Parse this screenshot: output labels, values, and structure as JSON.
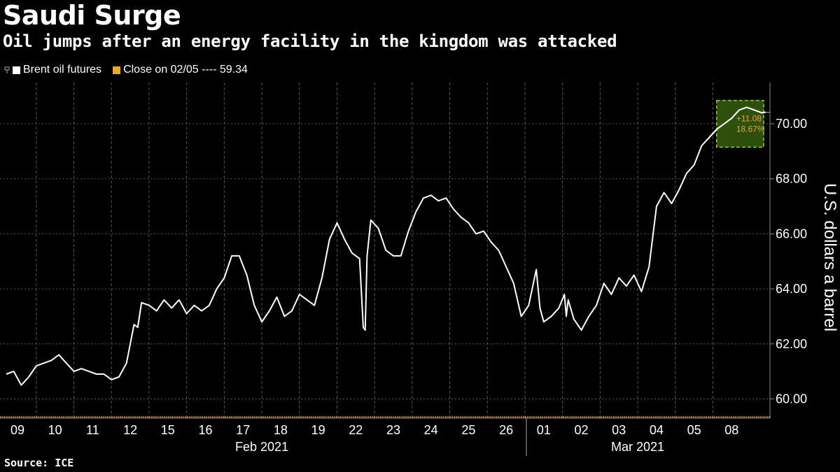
{
  "header": {
    "title": "Saudi Surge",
    "subtitle": "Oil jumps after an energy facility in the kingdom was attacked"
  },
  "legend": {
    "series_label": "Brent oil futures",
    "close_label": "Close on 02/05 ---- 59.34"
  },
  "source": "Source: ICE",
  "colors": {
    "background": "#000000",
    "line": "#ffffff",
    "close_line": "#f5a623",
    "highlight": "#3d6b12",
    "highlight_border": "#9acd32",
    "annotation": "#f0a030"
  },
  "chart_data": {
    "type": "line",
    "title": "Saudi Surge",
    "subtitle": "Oil jumps after an energy facility in the kingdom was attacked",
    "ylabel": "U.S. dollars a barrel",
    "ylim": [
      59.3,
      71.5
    ],
    "yticks": [
      "60.00",
      "62.00",
      "64.00",
      "66.00",
      "68.00",
      "70.00"
    ],
    "ytick_values": [
      60,
      62,
      64,
      66,
      68,
      70
    ],
    "xticks": [
      "09",
      "10",
      "11",
      "12",
      "15",
      "16",
      "17",
      "18",
      "19",
      "22",
      "23",
      "24",
      "25",
      "26",
      "01",
      "02",
      "03",
      "04",
      "05",
      "08"
    ],
    "months": [
      {
        "label": "Feb 2021",
        "from": 0,
        "to": 13
      },
      {
        "label": "Mar 2021",
        "from": 14,
        "to": 19
      }
    ],
    "reference_line": {
      "label": "Close on 02/05",
      "value": 59.34
    },
    "last_value": 70.42,
    "annotation": {
      "change": "+11.08",
      "pct": "18.67%"
    },
    "series": [
      {
        "name": "Brent oil futures",
        "x": [
          -0.3,
          -0.1,
          0.1,
          0.3,
          0.5,
          0.7,
          0.9,
          1.1,
          1.3,
          1.5,
          1.7,
          1.9,
          2.1,
          2.3,
          2.5,
          2.7,
          2.9,
          3.0,
          3.1,
          3.2,
          3.3,
          3.5,
          3.7,
          3.9,
          4.1,
          4.3,
          4.5,
          4.7,
          4.9,
          5.1,
          5.3,
          5.5,
          5.7,
          5.9,
          6.1,
          6.3,
          6.5,
          6.7,
          6.9,
          7.1,
          7.3,
          7.5,
          7.7,
          7.9,
          8.1,
          8.3,
          8.5,
          8.7,
          8.9,
          9.1,
          9.2,
          9.25,
          9.3,
          9.4,
          9.6,
          9.8,
          10.0,
          10.2,
          10.4,
          10.6,
          10.8,
          11.0,
          11.2,
          11.4,
          11.6,
          11.8,
          12.0,
          12.2,
          12.4,
          12.6,
          12.8,
          13.0,
          13.2,
          13.4,
          13.6,
          13.8,
          13.9,
          14.0,
          14.2,
          14.4,
          14.55,
          14.6,
          14.65,
          14.8,
          15.0,
          15.2,
          15.4,
          15.6,
          15.8,
          16.0,
          16.2,
          16.4,
          16.6,
          16.8,
          17.0,
          17.2,
          17.4,
          17.6,
          17.8,
          18.0,
          18.2,
          18.4,
          18.6,
          18.8,
          19.0,
          19.2,
          19.4,
          19.6,
          19.8,
          19.9
        ],
        "values": [
          60.9,
          61.0,
          60.5,
          60.8,
          61.2,
          61.3,
          61.4,
          61.6,
          61.3,
          61.0,
          61.1,
          61.0,
          60.9,
          60.9,
          60.7,
          60.8,
          61.3,
          62.0,
          62.7,
          62.6,
          63.5,
          63.4,
          63.2,
          63.6,
          63.3,
          63.6,
          63.1,
          63.4,
          63.2,
          63.4,
          64.0,
          64.4,
          65.2,
          65.2,
          64.5,
          63.4,
          62.8,
          63.2,
          63.7,
          63.0,
          63.2,
          63.8,
          63.6,
          63.4,
          64.4,
          65.8,
          66.4,
          65.8,
          65.3,
          65.1,
          62.6,
          62.5,
          65.2,
          66.5,
          66.2,
          65.4,
          65.2,
          65.2,
          66.1,
          66.8,
          67.3,
          67.4,
          67.2,
          67.3,
          66.9,
          66.6,
          66.4,
          66.0,
          66.1,
          65.7,
          65.4,
          64.8,
          64.2,
          63.0,
          63.4,
          64.7,
          63.3,
          62.8,
          63.0,
          63.3,
          63.8,
          63.0,
          63.6,
          62.9,
          62.5,
          63.0,
          63.4,
          64.2,
          63.8,
          64.4,
          64.1,
          64.5,
          63.9,
          64.8,
          67.0,
          67.5,
          67.1,
          67.6,
          68.2,
          68.5,
          69.2,
          69.5,
          69.8,
          70.0,
          70.2,
          70.5,
          70.6,
          70.5,
          70.4,
          70.42
        ]
      }
    ]
  }
}
